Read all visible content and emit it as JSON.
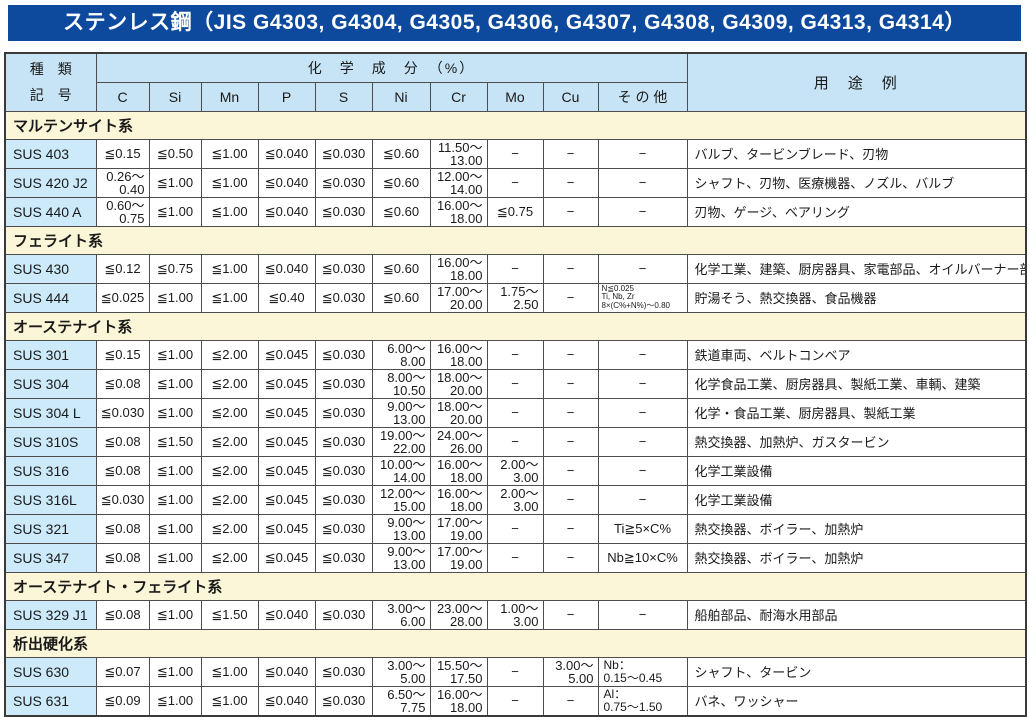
{
  "title": "ステンレス鋼（JIS G4303, G4304, G4305, G4306, G4307, G4308, G4309, G4313, G4314）",
  "table": {
    "header": {
      "kind_label_top": "種　類",
      "kind_label_bottom": "記　号",
      "chem_label": "化　学　成　分　（%）",
      "usage_label": "用　途　例",
      "elements": [
        "C",
        "Si",
        "Mn",
        "P",
        "S",
        "Ni",
        "Cr",
        "Mo",
        "Cu",
        "そ の 他"
      ]
    },
    "sections": [
      {
        "name": "マルテンサイト系",
        "rows": [
          {
            "code": "SUS 403",
            "cells": [
              [
                "≦0.15"
              ],
              [
                "≦0.50"
              ],
              [
                "≦1.00"
              ],
              [
                "≦0.040"
              ],
              [
                "≦0.030"
              ],
              [
                "≦0.60"
              ],
              [
                "11.50～",
                "13.00"
              ],
              [
                "−"
              ],
              [
                "−"
              ],
              [
                "−"
              ]
            ],
            "usage": "バルブ、タービンブレード、刃物"
          },
          {
            "code": "SUS 420 J2",
            "cells": [
              [
                "0.26～",
                "0.40"
              ],
              [
                "≦1.00"
              ],
              [
                "≦1.00"
              ],
              [
                "≦0.040"
              ],
              [
                "≦0.030"
              ],
              [
                "≦0.60"
              ],
              [
                "12.00～",
                "14.00"
              ],
              [
                "−"
              ],
              [
                "−"
              ],
              [
                "−"
              ]
            ],
            "usage": "シャフト、刃物、医療機器、ノズル、バルブ"
          },
          {
            "code": "SUS 440 A",
            "cells": [
              [
                "0.60～",
                "0.75"
              ],
              [
                "≦1.00"
              ],
              [
                "≦1.00"
              ],
              [
                "≦0.040"
              ],
              [
                "≦0.030"
              ],
              [
                "≦0.60"
              ],
              [
                "16.00～",
                "18.00"
              ],
              [
                "≦0.75"
              ],
              [
                "−"
              ],
              [
                "−"
              ]
            ],
            "usage": "刃物、ゲージ、ベアリング"
          }
        ]
      },
      {
        "name": "フェライト系",
        "rows": [
          {
            "code": "SUS 430",
            "cells": [
              [
                "≦0.12"
              ],
              [
                "≦0.75"
              ],
              [
                "≦1.00"
              ],
              [
                "≦0.040"
              ],
              [
                "≦0.030"
              ],
              [
                "≦0.60"
              ],
              [
                "16.00～",
                "18.00"
              ],
              [
                "−"
              ],
              [
                "−"
              ],
              [
                "−"
              ]
            ],
            "usage": "化学工業、建築、厨房器具、家電部品、オイルバーナー部品"
          },
          {
            "code": "SUS 444",
            "cells": [
              [
                "≦0.025"
              ],
              [
                "≦1.00"
              ],
              [
                "≦1.00"
              ],
              [
                "≦0.40"
              ],
              [
                "≦0.030"
              ],
              [
                "≦0.60"
              ],
              [
                "17.00～",
                "20.00"
              ],
              [
                "1.75～",
                "2.50"
              ],
              [
                "−"
              ],
              [
                "N≦0.025",
                "Ti, Nb, Zr",
                "8×(C%+N%)～0.80"
              ]
            ],
            "usage": "貯湯そう、熱交換器、食品機器"
          }
        ]
      },
      {
        "name": "オーステナイト系",
        "rows": [
          {
            "code": "SUS 301",
            "cells": [
              [
                "≦0.15"
              ],
              [
                "≦1.00"
              ],
              [
                "≦2.00"
              ],
              [
                "≦0.045"
              ],
              [
                "≦0.030"
              ],
              [
                "6.00～",
                "8.00"
              ],
              [
                "16.00～",
                "18.00"
              ],
              [
                "−"
              ],
              [
                "−"
              ],
              [
                "−"
              ]
            ],
            "usage": "鉄道車両、ベルトコンベア"
          },
          {
            "code": "SUS 304",
            "cells": [
              [
                "≦0.08"
              ],
              [
                "≦1.00"
              ],
              [
                "≦2.00"
              ],
              [
                "≦0.045"
              ],
              [
                "≦0.030"
              ],
              [
                "8.00～",
                "10.50"
              ],
              [
                "18.00～",
                "20.00"
              ],
              [
                "−"
              ],
              [
                "−"
              ],
              [
                "−"
              ]
            ],
            "usage": "化学食品工業、厨房器具、製紙工業、車輌、建築"
          },
          {
            "code": "SUS 304 L",
            "cells": [
              [
                "≦0.030"
              ],
              [
                "≦1.00"
              ],
              [
                "≦2.00"
              ],
              [
                "≦0.045"
              ],
              [
                "≦0.030"
              ],
              [
                "9.00～",
                "13.00"
              ],
              [
                "18.00～",
                "20.00"
              ],
              [
                "−"
              ],
              [
                "−"
              ],
              [
                "−"
              ]
            ],
            "usage": "化学・食品工業、厨房器具、製紙工業"
          },
          {
            "code": "SUS 310S",
            "cells": [
              [
                "≦0.08"
              ],
              [
                "≦1.50"
              ],
              [
                "≦2.00"
              ],
              [
                "≦0.045"
              ],
              [
                "≦0.030"
              ],
              [
                "19.00～",
                "22.00"
              ],
              [
                "24.00～",
                "26.00"
              ],
              [
                "−"
              ],
              [
                "−"
              ],
              [
                "−"
              ]
            ],
            "usage": "熱交換器、加熱炉、ガスタービン"
          },
          {
            "code": "SUS 316",
            "cells": [
              [
                "≦0.08"
              ],
              [
                "≦1.00"
              ],
              [
                "≦2.00"
              ],
              [
                "≦0.045"
              ],
              [
                "≦0.030"
              ],
              [
                "10.00～",
                "14.00"
              ],
              [
                "16.00～",
                "18.00"
              ],
              [
                "2.00～",
                "3.00"
              ],
              [
                "−"
              ],
              [
                "−"
              ]
            ],
            "usage": "化学工業設備"
          },
          {
            "code": "SUS 316L",
            "cells": [
              [
                "≦0.030"
              ],
              [
                "≦1.00"
              ],
              [
                "≦2.00"
              ],
              [
                "≦0.045"
              ],
              [
                "≦0.030"
              ],
              [
                "12.00～",
                "15.00"
              ],
              [
                "16.00～",
                "18.00"
              ],
              [
                "2.00～",
                "3.00"
              ],
              [
                "−"
              ],
              [
                "−"
              ]
            ],
            "usage": "化学工業設備"
          },
          {
            "code": "SUS 321",
            "cells": [
              [
                "≦0.08"
              ],
              [
                "≦1.00"
              ],
              [
                "≦2.00"
              ],
              [
                "≦0.045"
              ],
              [
                "≦0.030"
              ],
              [
                "9.00～",
                "13.00"
              ],
              [
                "17.00～",
                "19.00"
              ],
              [
                "−"
              ],
              [
                "−"
              ],
              [
                "Ti≧5×C%"
              ]
            ],
            "usage": "熱交換器、ボイラー、加熱炉"
          },
          {
            "code": "SUS 347",
            "cells": [
              [
                "≦0.08"
              ],
              [
                "≦1.00"
              ],
              [
                "≦2.00"
              ],
              [
                "≦0.045"
              ],
              [
                "≦0.030"
              ],
              [
                "9.00～",
                "13.00"
              ],
              [
                "17.00～",
                "19.00"
              ],
              [
                "−"
              ],
              [
                "−"
              ],
              [
                "Nb≧10×C%"
              ]
            ],
            "usage": "熱交換器、ボイラー、加熱炉"
          }
        ]
      },
      {
        "name": "オーステナイト・フェライト系",
        "rows": [
          {
            "code": "SUS 329 J1",
            "cells": [
              [
                "≦0.08"
              ],
              [
                "≦1.00"
              ],
              [
                "≦1.50"
              ],
              [
                "≦0.040"
              ],
              [
                "≦0.030"
              ],
              [
                "3.00～",
                "6.00"
              ],
              [
                "23.00～",
                "28.00"
              ],
              [
                "1.00～",
                "3.00"
              ],
              [
                "−"
              ],
              [
                "−"
              ]
            ],
            "usage": "船舶部品、耐海水用部品"
          }
        ]
      },
      {
        "name": "析出硬化系",
        "rows": [
          {
            "code": "SUS 630",
            "cells": [
              [
                "≦0.07"
              ],
              [
                "≦1.00"
              ],
              [
                "≦1.00"
              ],
              [
                "≦0.040"
              ],
              [
                "≦0.030"
              ],
              [
                "3.00～",
                "5.00"
              ],
              [
                "15.50～",
                "17.50"
              ],
              [
                "−"
              ],
              [
                "3.00～",
                "5.00"
              ],
              [
                "Nb：",
                "0.15～0.45"
              ]
            ],
            "usage": "シャフト、タービン"
          },
          {
            "code": "SUS 631",
            "cells": [
              [
                "≦0.09"
              ],
              [
                "≦1.00"
              ],
              [
                "≦1.00"
              ],
              [
                "≦0.040"
              ],
              [
                "≦0.030"
              ],
              [
                "6.50～",
                "7.75"
              ],
              [
                "16.00～",
                "18.00"
              ],
              [
                "−"
              ],
              [
                "−"
              ],
              [
                "Al：",
                "0.75～1.50"
              ]
            ],
            "usage": "バネ、ワッシャー"
          }
        ]
      }
    ]
  },
  "colors": {
    "title_bg": "#0d4a9e",
    "header_bg": "#c6e4f5",
    "code_bg": "#cdeafa",
    "section_bg": "#fbf6d8",
    "border": "#4d4d4d"
  }
}
